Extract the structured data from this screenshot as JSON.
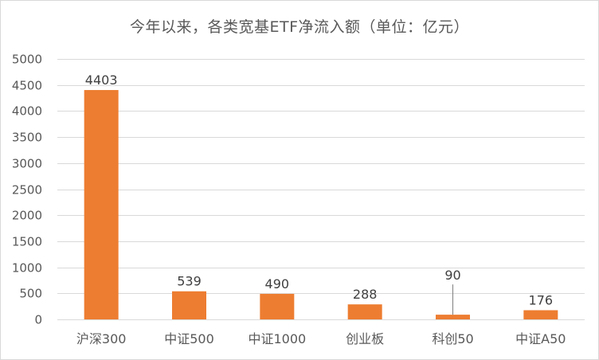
{
  "chart_data": {
    "type": "bar",
    "title": "今年以来，各类宽基ETF净流入额（单位：亿元）",
    "xlabel": "",
    "ylabel": "",
    "categories": [
      "沪深300",
      "中证500",
      "中证1000",
      "创业板",
      "科创50",
      "中证A50"
    ],
    "values": [
      4403,
      539,
      490,
      288,
      90,
      176
    ],
    "data_labels": [
      "4403",
      "539",
      "490",
      "288",
      "90",
      "176"
    ],
    "ylim": [
      0,
      5000
    ],
    "yticks": [
      0,
      500,
      1000,
      1500,
      2000,
      2500,
      3000,
      3500,
      4000,
      4500,
      5000
    ],
    "ytick_labels": [
      "0",
      "500",
      "1000",
      "1500",
      "2000",
      "2500",
      "3000",
      "3500",
      "4000",
      "4500",
      "5000"
    ],
    "grid": true,
    "legend": "none",
    "colors": {
      "bar": "#ED7D31",
      "grid": "#D9D9D9",
      "text": "#595959",
      "label": "#404040",
      "leader": "#7F7F7F"
    }
  }
}
